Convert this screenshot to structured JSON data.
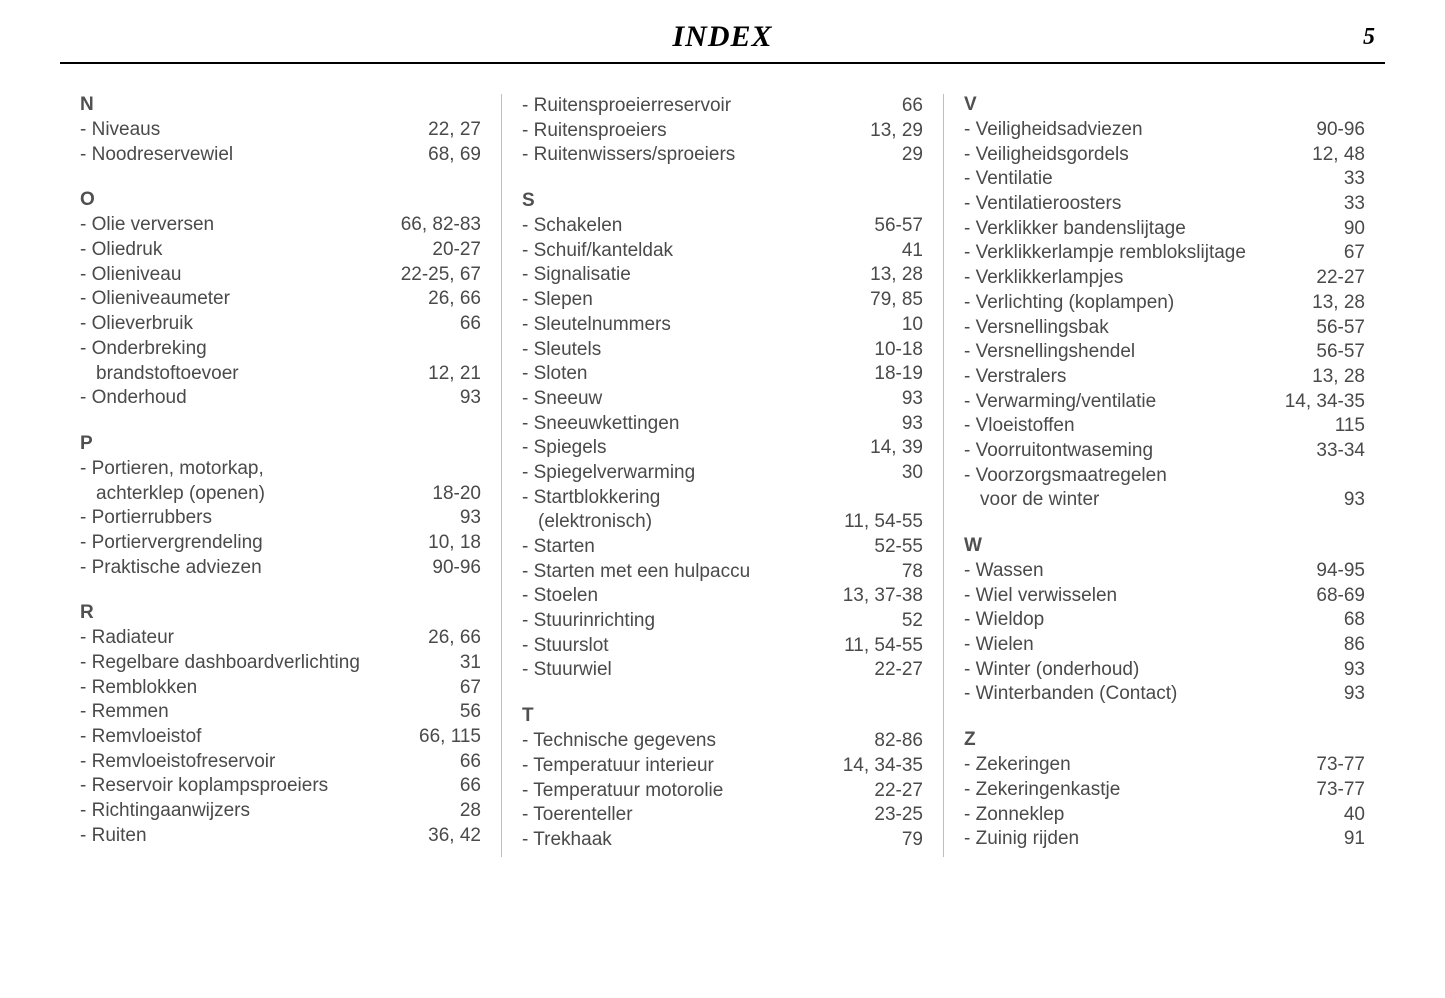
{
  "document": {
    "title": "INDEX",
    "page_number": "5",
    "title_font_family": "Georgia, serif",
    "title_font_style": "italic",
    "title_font_weight": 900,
    "title_font_size_pt": 22,
    "body_font_family": "Arial, sans-serif",
    "body_font_size_pt": 14,
    "text_color": "#4a4a4a",
    "rule_color": "#000000",
    "col_divider_color": "#bfbfbf",
    "background_color": "#ffffff"
  },
  "columns": [
    {
      "sections": [
        {
          "letter": "N",
          "entries": [
            {
              "label": "- Niveaus",
              "pages": "22, 27"
            },
            {
              "label": "- Noodreservewiel",
              "pages": "68, 69"
            }
          ]
        },
        {
          "letter": "O",
          "entries": [
            {
              "label": "- Olie verversen",
              "pages": "66, 82-83"
            },
            {
              "label": "- Oliedruk",
              "pages": "20-27"
            },
            {
              "label": "- Olieniveau",
              "pages": "22-25, 67"
            },
            {
              "label": "- Olieniveaumeter",
              "pages": "26, 66"
            },
            {
              "label": "- Olieverbruik",
              "pages": "66"
            },
            {
              "label": "- Onderbreking",
              "cont": "brandstoftoevoer",
              "pages": "12, 21"
            },
            {
              "label": "- Onderhoud",
              "pages": "93"
            }
          ]
        },
        {
          "letter": "P",
          "entries": [
            {
              "label": "- Portieren, motorkap,",
              "cont": "achterklep (openen)",
              "pages": "18-20"
            },
            {
              "label": "- Portierrubbers",
              "pages": "93"
            },
            {
              "label": "- Portiervergrendeling",
              "pages": "10, 18"
            },
            {
              "label": "- Praktische adviezen",
              "pages": "90-96"
            }
          ]
        },
        {
          "letter": "R",
          "entries": [
            {
              "label": "- Radiateur",
              "pages": "26, 66"
            },
            {
              "label": "- Regelbare dashboardverlichting",
              "pages": "31"
            },
            {
              "label": "- Remblokken",
              "pages": "67"
            },
            {
              "label": "- Remmen",
              "pages": "56"
            },
            {
              "label": "- Remvloeistof",
              "pages": "66, 115"
            },
            {
              "label": "- Remvloeistofreservoir",
              "pages": "66"
            },
            {
              "label": "- Reservoir koplampsproeiers",
              "pages": "66"
            },
            {
              "label": "- Richtingaanwijzers",
              "pages": "28"
            },
            {
              "label": "- Ruiten",
              "pages": "36, 42"
            }
          ]
        }
      ]
    },
    {
      "sections": [
        {
          "letter": "",
          "entries": [
            {
              "label": "- Ruitensproeierreservoir",
              "pages": "66"
            },
            {
              "label": "- Ruitensproeiers",
              "pages": "13, 29"
            },
            {
              "label": "- Ruitenwissers/sproeiers",
              "pages": "29"
            }
          ]
        },
        {
          "letter": "S",
          "entries": [
            {
              "label": "- Schakelen",
              "pages": "56-57"
            },
            {
              "label": "- Schuif/kanteldak",
              "pages": "41"
            },
            {
              "label": "- Signalisatie",
              "pages": "13, 28"
            },
            {
              "label": "- Slepen",
              "pages": "79, 85"
            },
            {
              "label": "- Sleutelnummers",
              "pages": "10"
            },
            {
              "label": "- Sleutels",
              "pages": "10-18"
            },
            {
              "label": "- Sloten",
              "pages": "18-19"
            },
            {
              "label": "- Sneeuw",
              "pages": "93"
            },
            {
              "label": "- Sneeuwkettingen",
              "pages": "93"
            },
            {
              "label": "- Spiegels",
              "pages": "14, 39"
            },
            {
              "label": "- Spiegelverwarming",
              "pages": "30"
            },
            {
              "label": "- Startblokkering",
              "cont": "(elektronisch)",
              "pages": "11, 54-55"
            },
            {
              "label": "- Starten",
              "pages": "52-55"
            },
            {
              "label": "- Starten met een hulpaccu",
              "pages": "78"
            },
            {
              "label": "- Stoelen",
              "pages": "13, 37-38"
            },
            {
              "label": "- Stuurinrichting",
              "pages": "52"
            },
            {
              "label": "- Stuurslot",
              "pages": "11, 54-55"
            },
            {
              "label": "- Stuurwiel",
              "pages": "22-27"
            }
          ]
        },
        {
          "letter": "T",
          "entries": [
            {
              "label": "- Technische gegevens",
              "pages": "82-86"
            },
            {
              "label": "- Temperatuur interieur",
              "pages": "14, 34-35"
            },
            {
              "label": "- Temperatuur motorolie",
              "pages": "22-27"
            },
            {
              "label": "- Toerenteller",
              "pages": "23-25"
            },
            {
              "label": "- Trekhaak",
              "pages": "79"
            }
          ]
        }
      ]
    },
    {
      "sections": [
        {
          "letter": "V",
          "entries": [
            {
              "label": "- Veiligheidsadviezen",
              "pages": "90-96"
            },
            {
              "label": "- Veiligheidsgordels",
              "pages": "12, 48"
            },
            {
              "label": "- Ventilatie",
              "pages": "33"
            },
            {
              "label": "- Ventilatieroosters",
              "pages": "33"
            },
            {
              "label": "- Verklikker bandenslijtage",
              "pages": "90"
            },
            {
              "label": "- Verklikkerlampje remblokslijtage",
              "pages": "67"
            },
            {
              "label": "- Verklikkerlampjes",
              "pages": "22-27"
            },
            {
              "label": "- Verlichting (koplampen)",
              "pages": "13, 28"
            },
            {
              "label": "- Versnellingsbak",
              "pages": "56-57"
            },
            {
              "label": "- Versnellingshendel",
              "pages": "56-57"
            },
            {
              "label": "- Verstralers",
              "pages": "13, 28"
            },
            {
              "label": "- Verwarming/ventilatie",
              "pages": "14, 34-35"
            },
            {
              "label": "- Vloeistoffen",
              "pages": "115"
            },
            {
              "label": "- Voorruitontwaseming",
              "pages": "33-34"
            },
            {
              "label": "- Voorzorgsmaatregelen",
              "cont": "voor de winter",
              "pages": "93"
            }
          ]
        },
        {
          "letter": "W",
          "entries": [
            {
              "label": "- Wassen",
              "pages": "94-95"
            },
            {
              "label": "- Wiel verwisselen",
              "pages": "68-69"
            },
            {
              "label": "- Wieldop",
              "pages": "68"
            },
            {
              "label": "- Wielen",
              "pages": "86"
            },
            {
              "label": "- Winter (onderhoud)",
              "pages": "93"
            },
            {
              "label": "- Winterbanden (Contact)",
              "pages": "93"
            }
          ]
        },
        {
          "letter": "Z",
          "entries": [
            {
              "label": "- Zekeringen",
              "pages": "73-77"
            },
            {
              "label": "- Zekeringenkastje",
              "pages": "73-77"
            },
            {
              "label": "- Zonneklep",
              "pages": "40"
            },
            {
              "label": "- Zuinig rijden",
              "pages": "91"
            }
          ]
        }
      ]
    }
  ]
}
